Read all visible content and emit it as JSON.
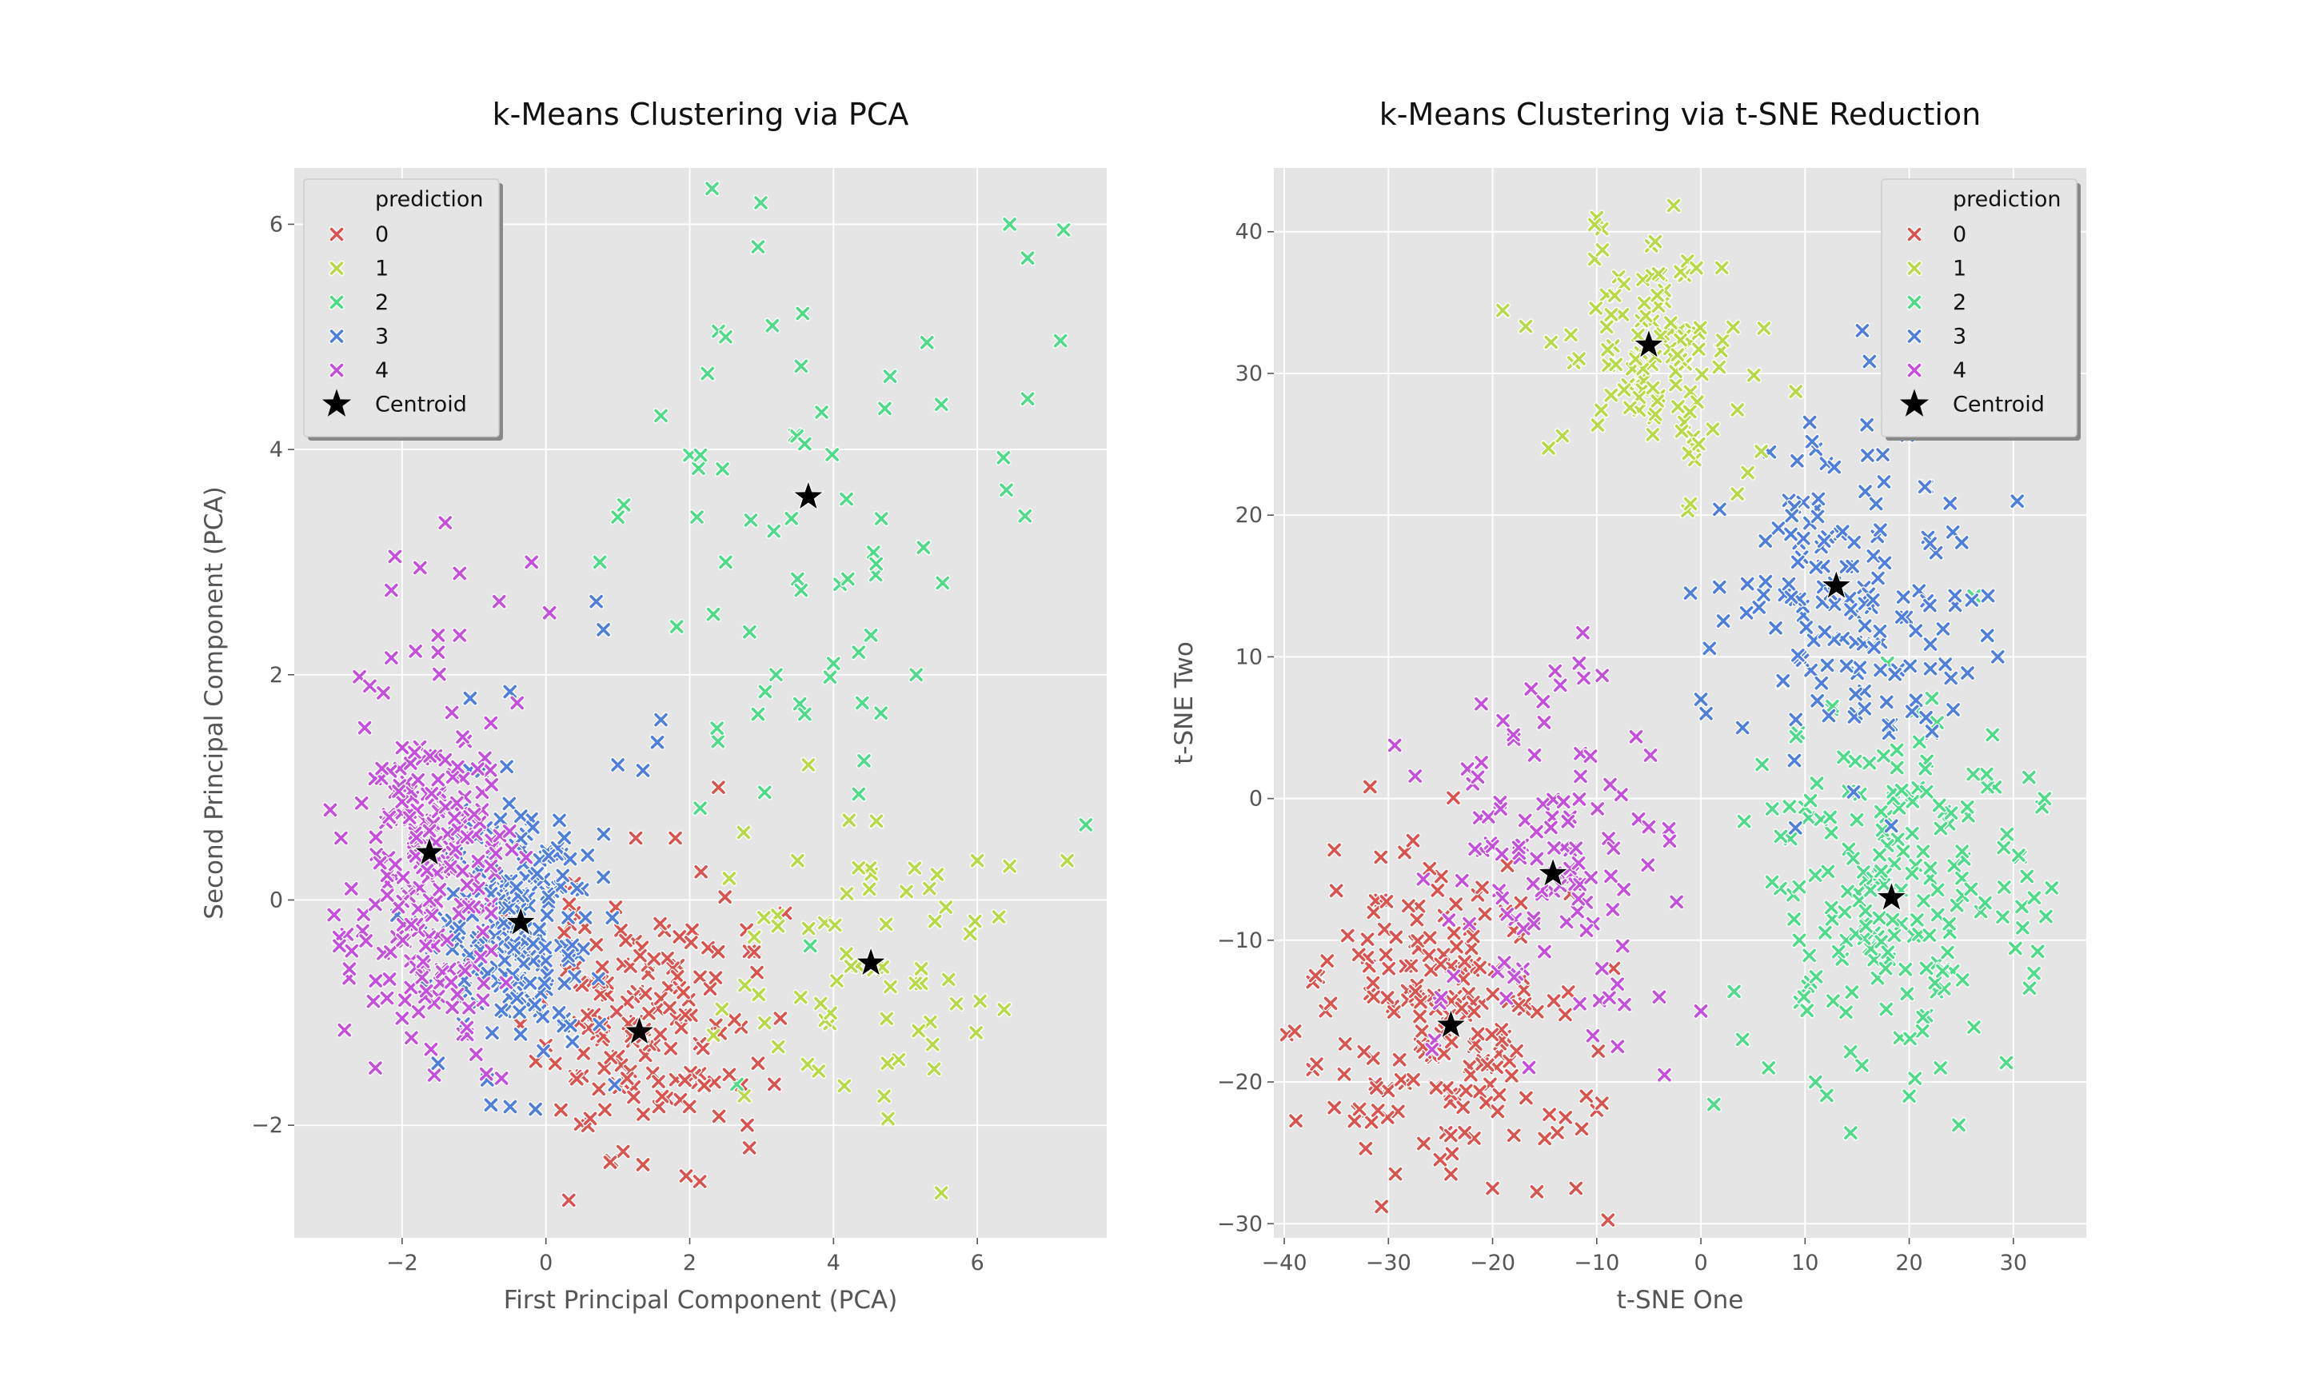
{
  "colors": {
    "0": "#d9534f",
    "1": "#b8d94a",
    "2": "#4fdb8a",
    "3": "#4f7fdb",
    "4": "#c44fdb",
    "centroid": "#000000",
    "plot_bg": "#e5e5e5",
    "grid": "#ffffff"
  },
  "chart_data": [
    {
      "type": "scatter",
      "title": "k-Means Clustering via PCA",
      "xlabel": "First Principal Component (PCA)",
      "ylabel": "Second Principal Component (PCA)",
      "xlim": [
        -3.5,
        7.8
      ],
      "ylim": [
        -3.0,
        6.5
      ],
      "xticks": [
        -2,
        0,
        2,
        4,
        6
      ],
      "yticks": [
        -2,
        0,
        2,
        4,
        6
      ],
      "xtick_labels": [
        "−2",
        "0",
        "2",
        "4",
        "6"
      ],
      "ytick_labels": [
        "−2",
        "0",
        "2",
        "4",
        "6"
      ],
      "grid": true,
      "legend": {
        "title": "prediction",
        "position": "top-left",
        "entries": [
          "0",
          "1",
          "2",
          "3",
          "4",
          "Centroid"
        ]
      },
      "clusters": [
        {
          "label": "0",
          "center": [
            1.3,
            -1.1
          ],
          "spread": [
            0.7,
            0.55
          ],
          "count": 150,
          "seed": 11
        },
        {
          "label": "1",
          "center": [
            4.3,
            -0.6
          ],
          "spread": [
            0.9,
            0.55
          ],
          "count": 60,
          "seed": 12
        },
        {
          "label": "2",
          "center": [
            3.4,
            2.8
          ],
          "spread": [
            1.6,
            1.6
          ],
          "count": 45,
          "seed": 13
        },
        {
          "label": "3",
          "center": [
            -0.4,
            -0.2
          ],
          "spread": [
            0.55,
            0.6
          ],
          "count": 200,
          "seed": 14
        },
        {
          "label": "4",
          "center": [
            -1.6,
            0.3
          ],
          "spread": [
            0.55,
            0.8
          ],
          "count": 220,
          "seed": 15
        }
      ],
      "points": [
        {
          "c": "2",
          "x": 6.45,
          "y": 6.0
        },
        {
          "c": "2",
          "x": 7.2,
          "y": 5.95
        },
        {
          "c": "2",
          "x": 6.7,
          "y": 5.7
        },
        {
          "c": "2",
          "x": 2.95,
          "y": 5.8
        },
        {
          "c": "2",
          "x": 3.15,
          "y": 5.1
        },
        {
          "c": "2",
          "x": 2.4,
          "y": 5.05
        },
        {
          "c": "2",
          "x": 2.5,
          "y": 5.0
        },
        {
          "c": "2",
          "x": 5.3,
          "y": 4.95
        },
        {
          "c": "2",
          "x": 5.5,
          "y": 4.4
        },
        {
          "c": "2",
          "x": 6.7,
          "y": 4.45
        },
        {
          "c": "2",
          "x": 1.6,
          "y": 4.3
        },
        {
          "c": "2",
          "x": 3.6,
          "y": 4.05
        },
        {
          "c": "2",
          "x": 2.0,
          "y": 3.95
        },
        {
          "c": "2",
          "x": 2.15,
          "y": 3.95
        },
        {
          "c": "2",
          "x": 2.1,
          "y": 3.4
        },
        {
          "c": "2",
          "x": 1.0,
          "y": 3.4
        },
        {
          "c": "2",
          "x": 0.75,
          "y": 3.0
        },
        {
          "c": "2",
          "x": 2.5,
          "y": 3.0
        },
        {
          "c": "2",
          "x": 3.5,
          "y": 2.85
        },
        {
          "c": "2",
          "x": 4.2,
          "y": 2.85
        },
        {
          "c": "2",
          "x": 3.55,
          "y": 2.75
        },
        {
          "c": "2",
          "x": 4.35,
          "y": 2.2
        },
        {
          "c": "2",
          "x": 4.0,
          "y": 2.1
        },
        {
          "c": "2",
          "x": 5.15,
          "y": 2.0
        },
        {
          "c": "2",
          "x": 3.2,
          "y": 2.0
        },
        {
          "c": "2",
          "x": 3.05,
          "y": 1.85
        },
        {
          "c": "2",
          "x": 4.4,
          "y": 1.75
        },
        {
          "c": "2",
          "x": 2.95,
          "y": 1.65
        },
        {
          "c": "2",
          "x": 3.6,
          "y": 1.65
        },
        {
          "c": "1",
          "x": 6.0,
          "y": 0.35
        },
        {
          "c": "1",
          "x": 6.45,
          "y": 0.3
        },
        {
          "c": "1",
          "x": 7.25,
          "y": 0.35
        },
        {
          "c": "1",
          "x": 6.3,
          "y": -0.15
        },
        {
          "c": "1",
          "x": 5.9,
          "y": -0.3
        },
        {
          "c": "1",
          "x": 5.5,
          "y": -2.6
        },
        {
          "c": "1",
          "x": 3.65,
          "y": 1.2
        },
        {
          "c": "1",
          "x": 3.5,
          "y": 0.35
        },
        {
          "c": "1",
          "x": 2.75,
          "y": 0.6
        },
        {
          "c": "1",
          "x": 4.15,
          "y": -1.65
        },
        {
          "c": "1",
          "x": 4.75,
          "y": -1.45
        },
        {
          "c": "1",
          "x": 5.4,
          "y": -1.5
        },
        {
          "c": "0",
          "x": 1.95,
          "y": -2.45
        },
        {
          "c": "0",
          "x": 1.35,
          "y": -2.35
        },
        {
          "c": "0",
          "x": 2.8,
          "y": -2.0
        },
        {
          "c": "0",
          "x": 1.8,
          "y": 0.55
        },
        {
          "c": "0",
          "x": 2.4,
          "y": 1.0
        },
        {
          "c": "0",
          "x": 1.25,
          "y": 0.55
        },
        {
          "c": "0",
          "x": 2.95,
          "y": -1.45
        },
        {
          "c": "0",
          "x": 2.55,
          "y": -1.55
        },
        {
          "c": "3",
          "x": 1.6,
          "y": 1.6
        },
        {
          "c": "3",
          "x": 1.55,
          "y": 1.4
        },
        {
          "c": "3",
          "x": 0.7,
          "y": 2.65
        },
        {
          "c": "3",
          "x": 0.8,
          "y": 2.4
        },
        {
          "c": "3",
          "x": 1.35,
          "y": 1.15
        },
        {
          "c": "3",
          "x": 1.0,
          "y": 1.2
        },
        {
          "c": "3",
          "x": -1.5,
          "y": -1.45
        },
        {
          "c": "3",
          "x": -0.5,
          "y": 1.85
        },
        {
          "c": "4",
          "x": -1.4,
          "y": 3.35
        },
        {
          "c": "4",
          "x": -2.1,
          "y": 3.05
        },
        {
          "c": "4",
          "x": -1.75,
          "y": 2.95
        },
        {
          "c": "4",
          "x": -1.2,
          "y": 2.9
        },
        {
          "c": "4",
          "x": -2.15,
          "y": 2.75
        },
        {
          "c": "4",
          "x": -0.65,
          "y": 2.65
        },
        {
          "c": "4",
          "x": -0.2,
          "y": 3.0
        },
        {
          "c": "4",
          "x": 0.05,
          "y": 2.55
        },
        {
          "c": "4",
          "x": -1.5,
          "y": 2.35
        },
        {
          "c": "4",
          "x": -1.2,
          "y": 2.35
        },
        {
          "c": "4",
          "x": -1.5,
          "y": 2.2
        },
        {
          "c": "4",
          "x": -2.15,
          "y": 2.15
        },
        {
          "c": "4",
          "x": -3.0,
          "y": 0.8
        },
        {
          "c": "4",
          "x": -2.85,
          "y": 0.55
        },
        {
          "c": "4",
          "x": -2.45,
          "y": 1.9
        },
        {
          "c": "4",
          "x": -0.4,
          "y": 1.75
        },
        {
          "c": "4",
          "x": -2.4,
          "y": -0.9
        },
        {
          "c": "4",
          "x": -2.0,
          "y": -1.05
        }
      ],
      "centroids": [
        {
          "label": "0",
          "x": 1.3,
          "y": -1.17
        },
        {
          "label": "1",
          "x": 4.52,
          "y": -0.56
        },
        {
          "label": "2",
          "x": 3.65,
          "y": 3.58
        },
        {
          "label": "3",
          "x": -0.35,
          "y": -0.2
        },
        {
          "label": "4",
          "x": -1.62,
          "y": 0.42
        }
      ]
    },
    {
      "type": "scatter",
      "title": "k-Means Clustering via t-SNE Reduction",
      "xlabel": "t-SNE One",
      "ylabel": "t-SNE Two",
      "xlim": [
        -41,
        37
      ],
      "ylim": [
        -31,
        44.5
      ],
      "xticks": [
        -40,
        -30,
        -20,
        -10,
        0,
        10,
        20,
        30
      ],
      "yticks": [
        -30,
        -20,
        -10,
        0,
        10,
        20,
        30,
        40
      ],
      "xtick_labels": [
        "−40",
        "−30",
        "−20",
        "−10",
        "0",
        "10",
        "20",
        "30"
      ],
      "ytick_labels": [
        "−30",
        "−20",
        "−10",
        "0",
        "10",
        "20",
        "30",
        "40"
      ],
      "grid": true,
      "legend": {
        "title": "prediction",
        "position": "top-right",
        "entries": [
          "0",
          "1",
          "2",
          "3",
          "4",
          "Centroid"
        ]
      },
      "clusters": [
        {
          "label": "0",
          "center": [
            -25,
            -15
          ],
          "spread": [
            6.5,
            6.0
          ],
          "count": 190,
          "seed": 21
        },
        {
          "label": "1",
          "center": [
            -5,
            32
          ],
          "spread": [
            4.5,
            3.5
          ],
          "count": 110,
          "seed": 22
        },
        {
          "label": "2",
          "center": [
            18,
            -7
          ],
          "spread": [
            6.5,
            6.5
          ],
          "count": 190,
          "seed": 23
        },
        {
          "label": "3",
          "center": [
            13,
            14
          ],
          "spread": [
            6.0,
            6.0
          ],
          "count": 150,
          "seed": 24
        },
        {
          "label": "4",
          "center": [
            -15,
            -5
          ],
          "spread": [
            5.5,
            6.5
          ],
          "count": 110,
          "seed": 25
        }
      ],
      "points": [
        {
          "c": "1",
          "x": -10,
          "y": 41
        },
        {
          "c": "1",
          "x": -9.5,
          "y": 40.2
        },
        {
          "c": "1",
          "x": -10.2,
          "y": 40.5
        },
        {
          "c": "1",
          "x": 3.5,
          "y": 21.5
        },
        {
          "c": "1",
          "x": 4.5,
          "y": 23
        },
        {
          "c": "1",
          "x": -1,
          "y": 20.8
        },
        {
          "c": "1",
          "x": 5.8,
          "y": 24.5
        },
        {
          "c": "3",
          "x": 18,
          "y": 27
        },
        {
          "c": "3",
          "x": 21.5,
          "y": 22
        },
        {
          "c": "3",
          "x": 26,
          "y": 14
        },
        {
          "c": "3",
          "x": 27.5,
          "y": 11.5
        },
        {
          "c": "3",
          "x": 28.5,
          "y": 10
        },
        {
          "c": "3",
          "x": -1,
          "y": 14.5
        },
        {
          "c": "3",
          "x": 0,
          "y": 7
        },
        {
          "c": "3",
          "x": 0.5,
          "y": 6
        },
        {
          "c": "3",
          "x": 4,
          "y": 5
        },
        {
          "c": "3",
          "x": 24,
          "y": 8.5
        },
        {
          "c": "3",
          "x": 22,
          "y": 18
        },
        {
          "c": "2",
          "x": 33,
          "y": 0
        },
        {
          "c": "2",
          "x": 31.5,
          "y": 1.5
        },
        {
          "c": "2",
          "x": 30.5,
          "y": -4
        },
        {
          "c": "2",
          "x": 32,
          "y": -7
        },
        {
          "c": "2",
          "x": 28,
          "y": 4.5
        },
        {
          "c": "2",
          "x": 11,
          "y": -20
        },
        {
          "c": "2",
          "x": 20,
          "y": -21
        },
        {
          "c": "2",
          "x": 23,
          "y": -19
        },
        {
          "c": "2",
          "x": 4,
          "y": -17
        },
        {
          "c": "2",
          "x": 6.5,
          "y": -19
        },
        {
          "c": "4",
          "x": -14,
          "y": 9
        },
        {
          "c": "4",
          "x": -13.5,
          "y": 8
        },
        {
          "c": "4",
          "x": -19,
          "y": 5.5
        },
        {
          "c": "4",
          "x": -18,
          "y": 4.5
        },
        {
          "c": "4",
          "x": -12,
          "y": -3.5
        },
        {
          "c": "4",
          "x": -5,
          "y": -2
        },
        {
          "c": "4",
          "x": -3,
          "y": -3
        },
        {
          "c": "4",
          "x": -4,
          "y": -14
        },
        {
          "c": "4",
          "x": 0,
          "y": -15
        },
        {
          "c": "4",
          "x": -3.5,
          "y": -19.5
        },
        {
          "c": "4",
          "x": -8,
          "y": -17.5
        },
        {
          "c": "4",
          "x": -9.5,
          "y": -12
        },
        {
          "c": "0",
          "x": -12,
          "y": -27.5
        },
        {
          "c": "0",
          "x": -20,
          "y": -27.5
        },
        {
          "c": "0",
          "x": -24,
          "y": -26.5
        },
        {
          "c": "0",
          "x": -31,
          "y": -22
        },
        {
          "c": "0",
          "x": -37,
          "y": -12.5
        },
        {
          "c": "0",
          "x": -35,
          "y": -6.5
        },
        {
          "c": "0",
          "x": -10,
          "y": -22
        },
        {
          "c": "0",
          "x": -11,
          "y": -21
        },
        {
          "c": "0",
          "x": -13,
          "y": -22.5
        },
        {
          "c": "0",
          "x": -15,
          "y": -24
        },
        {
          "c": "0",
          "x": -9.5,
          "y": -21.5
        }
      ],
      "centroids": [
        {
          "label": "0",
          "x": -24,
          "y": -16
        },
        {
          "label": "1",
          "x": -5,
          "y": 32
        },
        {
          "label": "2",
          "x": 18.3,
          "y": -7
        },
        {
          "label": "3",
          "x": 13,
          "y": 15
        },
        {
          "label": "4",
          "x": -14.2,
          "y": -5.3
        }
      ]
    }
  ]
}
